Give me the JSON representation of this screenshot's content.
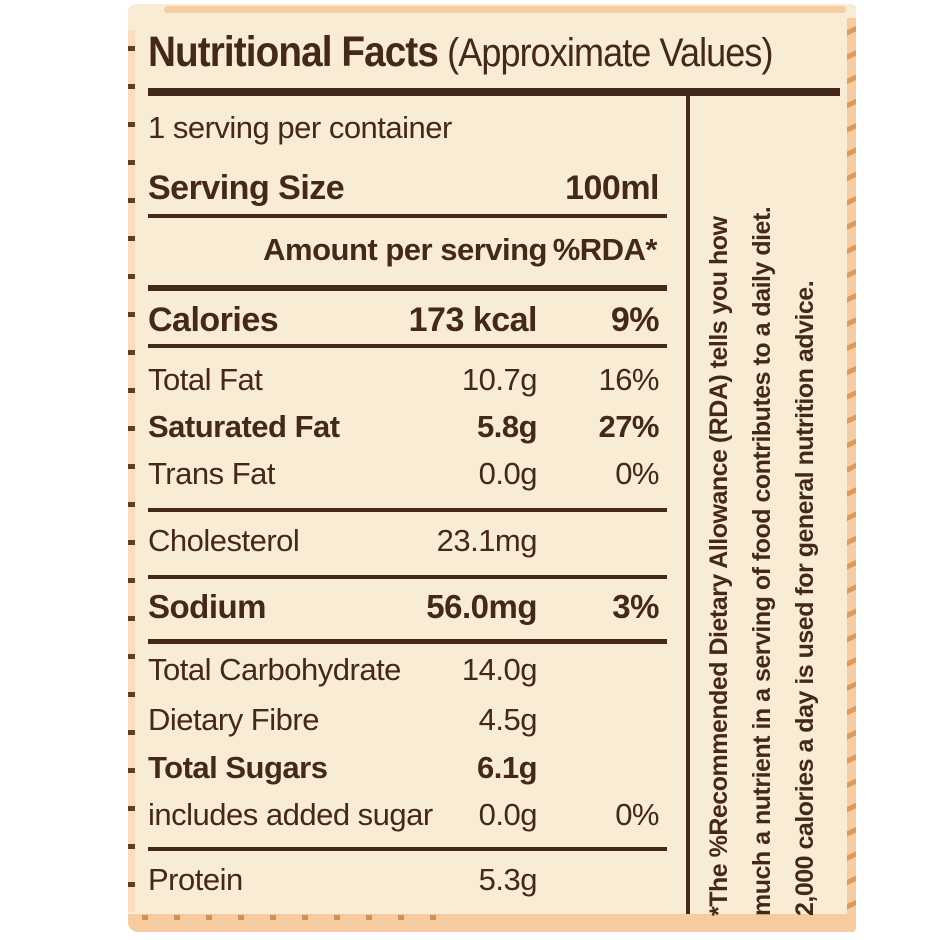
{
  "title": {
    "main": "Nutritional Facts",
    "suffix": " (Approximate Values)"
  },
  "header": {
    "servings_per_container": "1 serving per container",
    "serving_size_label": "Serving Size",
    "serving_size_value": "100ml",
    "amount_header": "Amount per serving",
    "rda_header": "%RDA*"
  },
  "table": {
    "rows": [
      {
        "label": "Calories",
        "amount": "173 kcal",
        "rda": "9%"
      },
      {
        "label": "Total Fat",
        "amount": "10.7g",
        "rda": "16%"
      },
      {
        "label": "Saturated Fat",
        "amount": "5.8g",
        "rda": "27%"
      },
      {
        "label": "Trans Fat",
        "amount": "0.0g",
        "rda": "0%"
      },
      {
        "label": "Cholesterol",
        "amount": "23.1mg",
        "rda": ""
      },
      {
        "label": "Sodium",
        "amount": "56.0mg",
        "rda": "3%"
      },
      {
        "label": "Total Carbohydrate",
        "amount": "14.0g",
        "rda": ""
      },
      {
        "label": "Dietary Fibre",
        "amount": "4.5g",
        "rda": ""
      },
      {
        "label": "Total Sugars",
        "amount": "6.1g",
        "rda": ""
      },
      {
        "label": "includes added sugar",
        "amount": "0.0g",
        "rda": "0%"
      },
      {
        "label": "Protein",
        "amount": "5.3g",
        "rda": ""
      }
    ]
  },
  "footnote": {
    "lines": [
      "*The %Recommended Dietary Allowance (RDA) tells you how",
      "much a nutrient in a serving of food contributes to a daily diet.",
      "2,000 calories a day is used for general nutrition advice."
    ]
  },
  "colors": {
    "ink_brown": "#44281b",
    "label_cream": "#f8ecd5",
    "edge_peach": "#f6cda2",
    "edge_dash_orange": "#dc9a5c",
    "background": "#ffffff"
  }
}
